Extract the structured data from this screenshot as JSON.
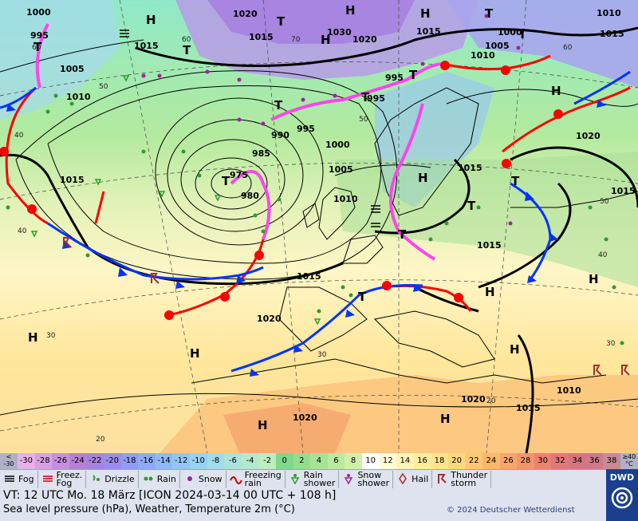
{
  "map": {
    "pressure_labels": [
      {
        "text": "1000"
      },
      {
        "text": "995"
      },
      {
        "text": "1005"
      },
      {
        "text": "1010"
      },
      {
        "text": "1015"
      },
      {
        "text": "1015"
      },
      {
        "text": "1020"
      },
      {
        "text": "1015"
      },
      {
        "text": "1030"
      },
      {
        "text": "1020"
      },
      {
        "text": "1015"
      },
      {
        "text": "1000"
      },
      {
        "text": "1005"
      },
      {
        "text": "1010"
      },
      {
        "text": "1010"
      },
      {
        "text": "1015"
      },
      {
        "text": "995"
      },
      {
        "text": "995"
      },
      {
        "text": "990"
      },
      {
        "text": "985"
      },
      {
        "text": "975"
      },
      {
        "text": "980"
      },
      {
        "text": "1000"
      },
      {
        "text": "1005"
      },
      {
        "text": "1010"
      },
      {
        "text": "1015"
      },
      {
        "text": "1020"
      },
      {
        "text": "1015"
      },
      {
        "text": "1015"
      },
      {
        "text": "1015"
      },
      {
        "text": "1020"
      },
      {
        "text": "1020"
      },
      {
        "text": "1020"
      },
      {
        "text": "1015"
      },
      {
        "text": "1010"
      },
      {
        "text": "995"
      }
    ],
    "centers": [
      {
        "text": "H"
      },
      {
        "text": "T"
      },
      {
        "text": "T"
      },
      {
        "text": "H"
      },
      {
        "text": "H"
      },
      {
        "text": "T"
      },
      {
        "text": "H"
      },
      {
        "text": "T"
      },
      {
        "text": "T"
      },
      {
        "text": "T"
      },
      {
        "text": "T"
      },
      {
        "text": "T"
      },
      {
        "text": "H"
      },
      {
        "text": "H"
      },
      {
        "text": "T"
      },
      {
        "text": "T"
      },
      {
        "text": "T"
      },
      {
        "text": "T"
      },
      {
        "text": "H"
      },
      {
        "text": "H"
      },
      {
        "text": "H"
      },
      {
        "text": "H"
      },
      {
        "text": "H"
      },
      {
        "text": "H"
      },
      {
        "text": "H"
      },
      {
        "text": "T"
      }
    ],
    "lat_labels": [
      "60",
      "50",
      "40",
      "30",
      "20",
      "40",
      "30",
      "20",
      "60",
      "50",
      "40",
      "30",
      "70",
      "50",
      "60"
    ]
  },
  "scale": {
    "left_edge": "<\n-30",
    "right_edge": "≥40\n°C",
    "cells": [
      {
        "label": "-30",
        "color": "#e7b0e8"
      },
      {
        "label": "-28",
        "color": "#d99fe3"
      },
      {
        "label": "-26",
        "color": "#c68fdc"
      },
      {
        "label": "-24",
        "color": "#b57fd6"
      },
      {
        "label": "-22",
        "color": "#a584db"
      },
      {
        "label": "-20",
        "color": "#9a8ee6"
      },
      {
        "label": "-18",
        "color": "#8f9ef0"
      },
      {
        "label": "-16",
        "color": "#8cabf4"
      },
      {
        "label": "-14",
        "color": "#8fb9f6"
      },
      {
        "label": "-12",
        "color": "#93c6f5"
      },
      {
        "label": "-10",
        "color": "#98d2f2"
      },
      {
        "label": "-8",
        "color": "#a2dbea"
      },
      {
        "label": "-6",
        "color": "#abe3dd"
      },
      {
        "label": "-4",
        "color": "#b4e9cf"
      },
      {
        "label": "-2",
        "color": "#bdedc0"
      },
      {
        "label": "0",
        "color": "#7fd88b"
      },
      {
        "label": "2",
        "color": "#92de8e"
      },
      {
        "label": "4",
        "color": "#a7e397"
      },
      {
        "label": "6",
        "color": "#bbe9a0"
      },
      {
        "label": "8",
        "color": "#d2efaa"
      },
      {
        "label": "10",
        "color": "#ffffff"
      },
      {
        "label": "12",
        "color": "#fffbd6"
      },
      {
        "label": "14",
        "color": "#fff4b8"
      },
      {
        "label": "16",
        "color": "#ffed9f"
      },
      {
        "label": "18",
        "color": "#fde48c"
      },
      {
        "label": "20",
        "color": "#fcd77f"
      },
      {
        "label": "22",
        "color": "#fbc873"
      },
      {
        "label": "24",
        "color": "#f9b86b"
      },
      {
        "label": "26",
        "color": "#f6a66b"
      },
      {
        "label": "28",
        "color": "#f2946c"
      },
      {
        "label": "30",
        "color": "#ec8270"
      },
      {
        "label": "32",
        "color": "#e27878"
      },
      {
        "label": "34",
        "color": "#d77480"
      },
      {
        "label": "36",
        "color": "#cc7a8a"
      },
      {
        "label": "38",
        "color": "#c58b97"
      }
    ]
  },
  "legend": [
    {
      "label": "Fog",
      "icon": "fog-icon"
    },
    {
      "label": "Freez.\nFog",
      "icon": "freezing-fog-icon"
    },
    {
      "label": "Drizzle",
      "icon": "drizzle-icon"
    },
    {
      "label": "Rain",
      "icon": "rain-icon"
    },
    {
      "label": "Snow",
      "icon": "snow-icon"
    },
    {
      "label": "Freezing\nrain",
      "icon": "freezing-rain-icon"
    },
    {
      "label": "Rain\nshower",
      "icon": "rain-shower-icon"
    },
    {
      "label": "Snow\nshower",
      "icon": "snow-shower-icon"
    },
    {
      "label": "Hail",
      "icon": "hail-icon"
    },
    {
      "label": "Thunder\nstorm",
      "icon": "thunderstorm-icon"
    }
  ],
  "info": {
    "vt": "VT: 12 UTC Mo.   18 März [ICON 2024-03-14  00 UTC + 108 h]",
    "subtitle": "Sea level pressure (hPa), Weather, Temperature 2m (°C)",
    "copyright": "© 2024 Deutscher Wetterdienst",
    "logo": "DWD"
  },
  "colors": {
    "warm_front": "#ff0000",
    "cold_front": "#0033ff",
    "occlusion": "#ff44ee",
    "isobar": "#000000"
  }
}
